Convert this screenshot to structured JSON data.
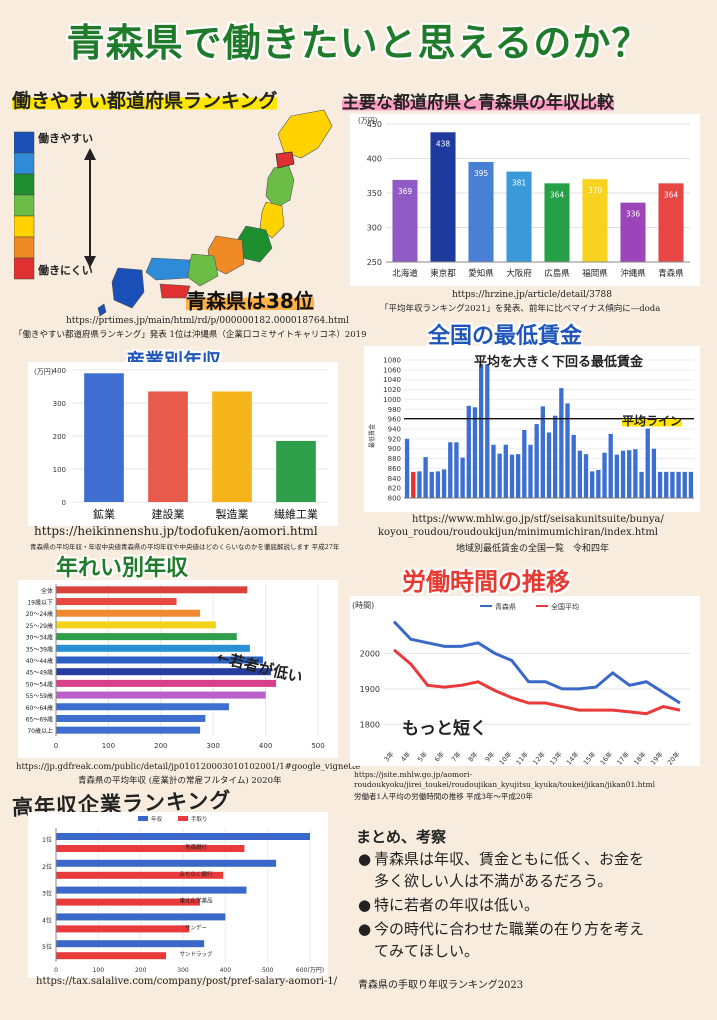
{
  "title": "青森県で働きたいと思えるのか？",
  "map_section": {
    "heading": "働きやすい都道府県ランキング",
    "legend_top": "働きやすい",
    "legend_bottom": "働きにくい",
    "callout": "青森県は38位",
    "url": "https://prtimes.jp/main/html/rd/p/000000182.000018764.html",
    "source": "「働きやすい都道府県ランキング」発表 1位は沖縄県（企業口コミサイトキャリコネ）2019",
    "colors": [
      "#1a4fb8",
      "#2e8bd8",
      "#1d8f2e",
      "#6cbd45",
      "#ffd200",
      "#f08a24",
      "#e03030"
    ]
  },
  "income_compare": {
    "heading": "主要な都道府県と青森県の年収比較",
    "url": "https://hrzine.jp/article/detail/3788",
    "source": "「平均年収ランキング2021」を発表、前年に比べマイナス傾向に—doda",
    "chart_data": {
      "type": "bar",
      "ylabel": "(万円)",
      "ylim": [
        250,
        450
      ],
      "yticks": [
        250,
        300,
        350,
        400,
        450
      ],
      "categories": [
        "北海道",
        "東京都",
        "愛知県",
        "大阪府",
        "広島県",
        "福岡県",
        "沖縄県",
        "青森県"
      ],
      "values": [
        369,
        438,
        395,
        381,
        364,
        370,
        336,
        364
      ],
      "colors": [
        "#8e5cc4",
        "#1e3a9e",
        "#4a7fd6",
        "#3a9ad9",
        "#26a046",
        "#f7d21e",
        "#9b45b8",
        "#e84545"
      ]
    }
  },
  "industry": {
    "heading": "産業別年収",
    "url": "https://heikinnenshu.jp/todofuken/aomori.html",
    "source": "青森県の平均年収・年収中央値青森県の平均年収や中央値はどのくらいなのかを徹底解説します 平成27年",
    "chart_data": {
      "type": "bar",
      "ylabel": "(万円)",
      "ylim": [
        0,
        400
      ],
      "yticks": [
        0,
        100,
        200,
        300,
        400
      ],
      "categories": [
        "鉱業",
        "建設業",
        "製造業",
        "繊維工業"
      ],
      "values": [
        390,
        335,
        335,
        185
      ],
      "colors": [
        "#3e6fd0",
        "#e85a4a",
        "#f5b41a",
        "#2f9e4a"
      ]
    }
  },
  "min_wage": {
    "heading": "全国の最低賃金",
    "annotation": "平均を大きく下回る最低賃金",
    "avg_label": "平均ライン",
    "url1": "https://www.mhlw.go.jp/stf/seisakunitsuite/bunya/",
    "url2": "koyou_roudou/roudoukijun/minimumichiran/index.html",
    "source": "地域別最低賃金の全国一覧　令和四年",
    "chart_data": {
      "type": "bar",
      "ylabel": "最低賃金",
      "ylim": [
        800,
        1080
      ],
      "yticks": [
        800,
        820,
        840,
        860,
        880,
        900,
        920,
        940,
        960,
        980,
        1000,
        1020,
        1040,
        1060,
        1080
      ],
      "average": 961,
      "highlight_index": 1,
      "values": [
        920,
        853,
        854,
        883,
        853,
        854,
        858,
        913,
        913,
        882,
        987,
        984,
        1072,
        1071,
        908,
        890,
        908,
        888,
        889,
        938,
        908,
        950,
        986,
        933,
        967,
        1023,
        992,
        928,
        896,
        889,
        854,
        857,
        892,
        930,
        888,
        896,
        897,
        899,
        853,
        941,
        900,
        853,
        853,
        853,
        853,
        853,
        853
      ],
      "color": "#3c6fd1",
      "highlight_color": "#e83030"
    }
  },
  "age": {
    "heading": "年れい別年収",
    "annotation": "←若者が低い",
    "url": "https://jp.gdfreak.com/public/detail/jp010120003010102001/1#google_vignette",
    "source": "青森県の平均年収 (産業計の常雇フルタイム) 2020年",
    "chart_data": {
      "type": "bar",
      "orientation": "horizontal",
      "xlim": [
        0,
        500
      ],
      "xticks": [
        0,
        100,
        200,
        300,
        400,
        500
      ],
      "categories": [
        "全体",
        "19歳以下",
        "20〜24歳",
        "25〜29歳",
        "30〜34歳",
        "35〜39歳",
        "40〜44歳",
        "45〜49歳",
        "50〜54歳",
        "55〜59歳",
        "60〜64歳",
        "65〜69歳",
        "70歳以上"
      ],
      "values": [
        365,
        230,
        275,
        305,
        345,
        370,
        395,
        410,
        420,
        400,
        330,
        285,
        275
      ],
      "colors": [
        "#d9413b",
        "#e8483f",
        "#f08a30",
        "#f3d21a",
        "#2f9e4a",
        "#2b8fd6",
        "#2a5fc4",
        "#243d9e",
        "#d8408a",
        "#b85fc9",
        "#3e6fd0",
        "#3e6fd0",
        "#3e6fd0"
      ]
    }
  },
  "hours": {
    "heading": "労働時間の推移",
    "annotation": "もっと短く",
    "url1": "https://jsite.mhlw.go.jp/aomori-",
    "url2": "roudoukyoku/jirei_toukei/roudoujikan_kyujitsu_kyuka/toukei/jikan/jikan01.html",
    "source": "労働者1人平均の労働時間の推移 平成3年〜平成20年",
    "chart_data": {
      "type": "line",
      "ylabel": "(時間)",
      "ylim": [
        1750,
        2100
      ],
      "yticks": [
        1800,
        1900,
        2000
      ],
      "x": [
        "3年",
        "4年",
        "5年",
        "6年",
        "7年",
        "8年",
        "9年",
        "10年",
        "11年",
        "12年",
        "13年",
        "14年",
        "15年",
        "16年",
        "17年",
        "18年",
        "19年",
        "20年"
      ],
      "series": [
        {
          "name": "青森県",
          "color": "#3a68c8",
          "values": [
            2090,
            2040,
            2030,
            2020,
            2020,
            2030,
            2000,
            1980,
            1920,
            1920,
            1900,
            1900,
            1905,
            1945,
            1910,
            1920,
            1890,
            1860
          ]
        },
        {
          "name": "全国平均",
          "color": "#e83a3a",
          "values": [
            2010,
            1970,
            1910,
            1905,
            1910,
            1920,
            1895,
            1875,
            1860,
            1860,
            1850,
            1840,
            1840,
            1840,
            1835,
            1830,
            1850,
            1840
          ]
        }
      ]
    }
  },
  "companies": {
    "heading": "高年収企業ランキング",
    "url": "https://tax.salalive.com/company/post/pref-salary-aomori-1/",
    "source": "青森県の手取り年収ランキング2023",
    "chart_data": {
      "type": "bar",
      "orientation": "horizontal",
      "xlim": [
        0,
        600
      ],
      "xticks": [
        0,
        100,
        200,
        300,
        400,
        500,
        600
      ],
      "xlabel_end": "600(万円)",
      "legend": [
        "年収",
        "手取り"
      ],
      "categories": [
        "1位",
        "2位",
        "3位",
        "4位",
        "5位"
      ],
      "company_names": [
        "青森銀行",
        "みちのく銀行",
        "東北化学薬品",
        "サンデー",
        "サンドラッグ"
      ],
      "series": [
        {
          "name": "年収",
          "color": "#3a68c8",
          "values": [
            600,
            520,
            450,
            400,
            350
          ]
        },
        {
          "name": "手取り",
          "color": "#e83a3a",
          "values": [
            445,
            395,
            340,
            315,
            260
          ]
        }
      ]
    }
  },
  "summary": {
    "heading": "まとめ、考察",
    "bullets": [
      {
        "line1": "青森県は年収、賃金ともに低く、お金を",
        "line2": "多く欲しい人は不満があるだろう。"
      },
      {
        "line1": "特に若者の年収は低い。",
        "line2": ""
      },
      {
        "line1": "今の時代に合わせた職業の在り方を考え",
        "line2": "てみてほしい。"
      }
    ]
  }
}
